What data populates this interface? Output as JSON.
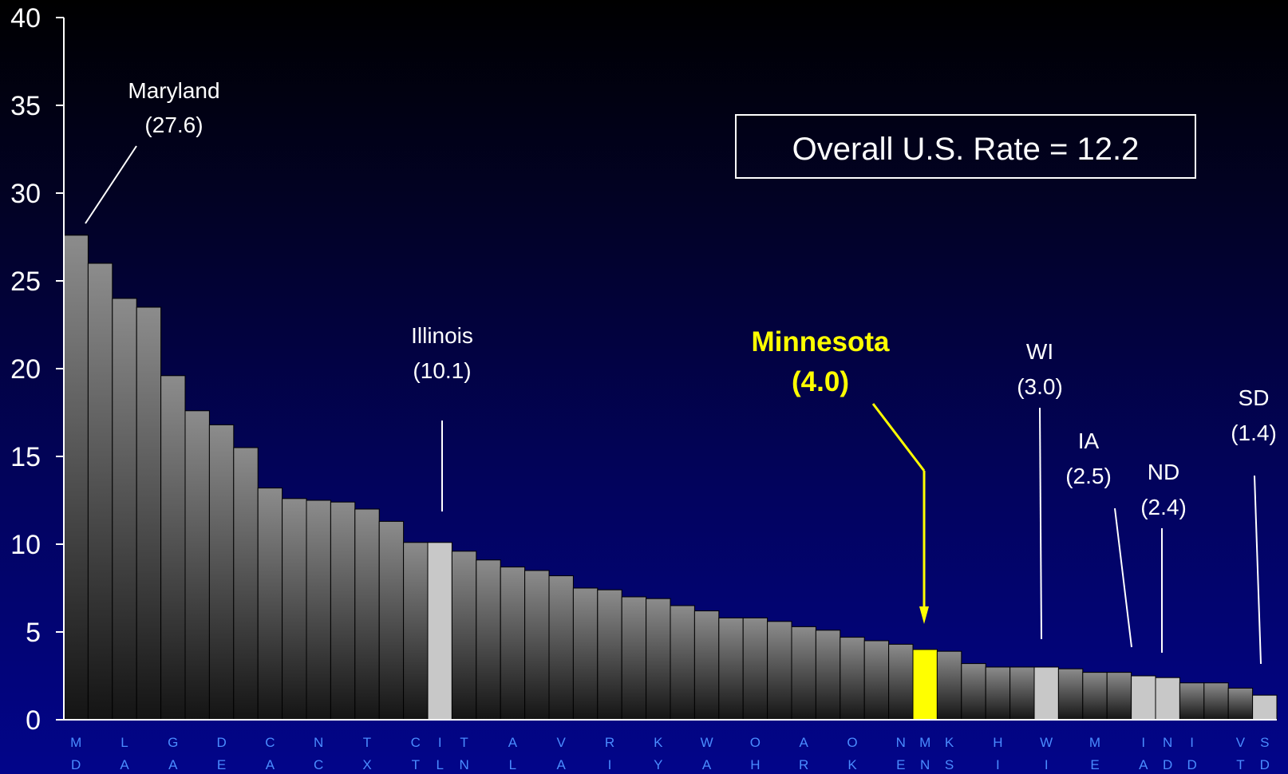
{
  "chart_data": {
    "type": "bar",
    "categories": [
      "MD",
      "LA",
      "GA",
      "DE",
      "CA",
      "NC",
      "TX",
      "CT",
      "IL",
      "TN",
      "AL",
      "VA",
      "RI",
      "KY",
      "WA",
      "OH",
      "AR",
      "OK",
      "NE",
      "MN",
      "KS",
      "HI",
      "WI",
      "ME",
      "IA",
      "ND",
      "ID",
      "VT",
      "SD"
    ],
    "bars": [
      {
        "state": "MD",
        "value": 27.6
      },
      {
        "state": "",
        "value": 26.0
      },
      {
        "state": "LA",
        "value": 24.0
      },
      {
        "state": "",
        "value": 23.5
      },
      {
        "state": "GA",
        "value": 19.6
      },
      {
        "state": "",
        "value": 17.6
      },
      {
        "state": "DE",
        "value": 16.8
      },
      {
        "state": "",
        "value": 15.5
      },
      {
        "state": "CA",
        "value": 13.2
      },
      {
        "state": "",
        "value": 12.6
      },
      {
        "state": "NC",
        "value": 12.5
      },
      {
        "state": "",
        "value": 12.4
      },
      {
        "state": "TX",
        "value": 12.0
      },
      {
        "state": "",
        "value": 11.3
      },
      {
        "state": "CT",
        "value": 10.1
      },
      {
        "state": "IL",
        "value": 10.1
      },
      {
        "state": "TN",
        "value": 9.6
      },
      {
        "state": "",
        "value": 9.1
      },
      {
        "state": "AL",
        "value": 8.7
      },
      {
        "state": "",
        "value": 8.5
      },
      {
        "state": "VA",
        "value": 8.2
      },
      {
        "state": "",
        "value": 7.5
      },
      {
        "state": "RI",
        "value": 7.4
      },
      {
        "state": "",
        "value": 7.0
      },
      {
        "state": "KY",
        "value": 6.9
      },
      {
        "state": "",
        "value": 6.5
      },
      {
        "state": "WA",
        "value": 6.2
      },
      {
        "state": "",
        "value": 5.8
      },
      {
        "state": "OH",
        "value": 5.8
      },
      {
        "state": "",
        "value": 5.6
      },
      {
        "state": "AR",
        "value": 5.3
      },
      {
        "state": "",
        "value": 5.1
      },
      {
        "state": "OK",
        "value": 4.7
      },
      {
        "state": "",
        "value": 4.5
      },
      {
        "state": "NE",
        "value": 4.3
      },
      {
        "state": "MN",
        "value": 4.0
      },
      {
        "state": "KS",
        "value": 3.9
      },
      {
        "state": "",
        "value": 3.2
      },
      {
        "state": "HI",
        "value": 3.0
      },
      {
        "state": "",
        "value": 3.0
      },
      {
        "state": "WI",
        "value": 3.0
      },
      {
        "state": "",
        "value": 2.9
      },
      {
        "state": "ME",
        "value": 2.7
      },
      {
        "state": "",
        "value": 2.7
      },
      {
        "state": "IA",
        "value": 2.5
      },
      {
        "state": "ND",
        "value": 2.4
      },
      {
        "state": "ID",
        "value": 2.1
      },
      {
        "state": "",
        "value": 2.1
      },
      {
        "state": "VT",
        "value": 1.8
      },
      {
        "state": "SD",
        "value": 1.4
      }
    ],
    "highlighted": {
      "IL": "#c8c8c8",
      "WI": "#c8c8c8",
      "IA": "#c8c8c8",
      "ND": "#c8c8c8",
      "SD": "#c8c8c8",
      "MN": "#ffff00"
    },
    "ylim": [
      0,
      40
    ],
    "yticks": [
      "0",
      "5",
      "10",
      "15",
      "20",
      "25",
      "30",
      "35",
      "40"
    ],
    "grid": false,
    "annotations": [
      {
        "state": "MD",
        "name": "Maryland",
        "value": "(27.6)"
      },
      {
        "state": "IL",
        "name": "Illinois",
        "value": "(10.1)"
      },
      {
        "state": "MN",
        "name": "Minnesota",
        "value": "(4.0)"
      },
      {
        "state": "WI",
        "name": "WI",
        "value": "(3.0)"
      },
      {
        "state": "IA",
        "name": "IA",
        "value": "(2.5)"
      },
      {
        "state": "ND",
        "name": "ND",
        "value": "(2.4)"
      },
      {
        "state": "SD",
        "name": "SD",
        "value": "(1.4)"
      }
    ],
    "overall_label": "Overall U.S. Rate = 12.2"
  },
  "colors": {
    "bar_top": "#8c8c8c",
    "bar_bottom": "#141414",
    "highlight_gray": "#c8c8c8",
    "highlight_yellow": "#ffff00",
    "axis": "#ffffff",
    "xlabel": "#4a8cff"
  }
}
